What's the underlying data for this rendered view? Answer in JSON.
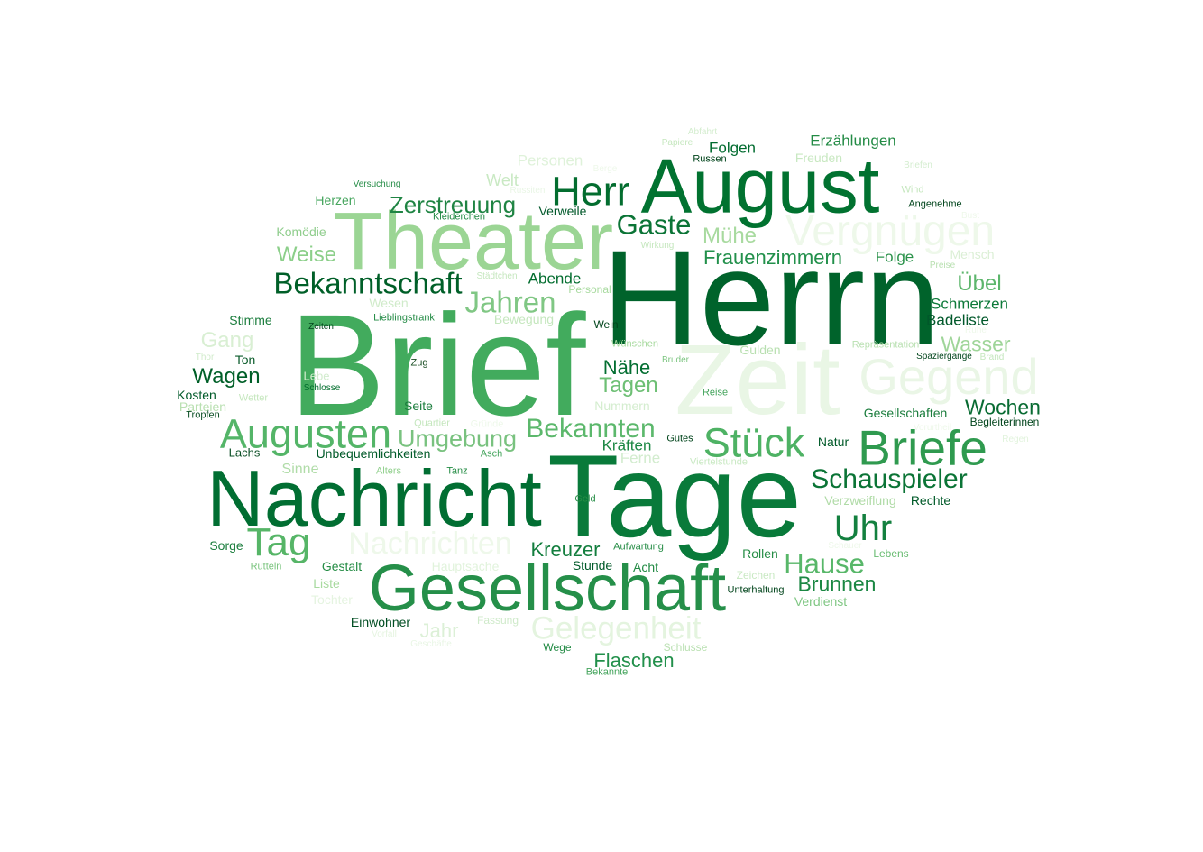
{
  "words": [
    {
      "text": "Herrn",
      "color": "#00632b"
    },
    {
      "text": "Brief",
      "color": "#42ab5d"
    },
    {
      "text": "Tage",
      "color": "#097a3a"
    },
    {
      "text": "Zeit",
      "color": "#e9f6e5"
    },
    {
      "text": "Nachricht",
      "color": "#016e32"
    },
    {
      "text": "Theater",
      "color": "#9bd594"
    },
    {
      "text": "August",
      "color": "#017230"
    },
    {
      "text": "Gesellschaft",
      "color": "#258f49"
    },
    {
      "text": "Gegend",
      "color": "#eaf6e6"
    },
    {
      "text": "Vergnügen",
      "color": "#eef8ea"
    },
    {
      "text": "Briefe",
      "color": "#2f9a4f"
    },
    {
      "text": "Augusten",
      "color": "#54b568"
    },
    {
      "text": "Herr",
      "color": "#036d2f"
    },
    {
      "text": "Nachrichten",
      "color": "#eef8ea"
    },
    {
      "text": "Gelegenheit",
      "color": "#e4f4df"
    },
    {
      "text": "Stück",
      "color": "#4eb264"
    },
    {
      "text": "Uhr",
      "color": "#13803f"
    },
    {
      "text": "Bekanntschaft",
      "color": "#005f28"
    },
    {
      "text": "Schauspieler",
      "color": "#0b7436"
    },
    {
      "text": "Tag",
      "color": "#56b567"
    },
    {
      "text": "Bekannten",
      "color": "#5cb86c"
    },
    {
      "text": "Jahren",
      "color": "#80c784"
    },
    {
      "text": "Gaste",
      "color": "#0b7436"
    },
    {
      "text": "Zerstreuung",
      "color": "#1f8443"
    },
    {
      "text": "Hause",
      "color": "#58b769"
    },
    {
      "text": "Umgebung",
      "color": "#79c27f"
    },
    {
      "text": "Wochen",
      "color": "#086b32"
    },
    {
      "text": "Brunnen",
      "color": "#1b8743"
    },
    {
      "text": "Frauenzimmern",
      "color": "#22904b"
    },
    {
      "text": "Wagen",
      "color": "#005f28"
    },
    {
      "text": "Weise",
      "color": "#8ccf8a"
    },
    {
      "text": "Wasser",
      "color": "#9fd599"
    },
    {
      "text": "Mühe",
      "color": "#a8da9f"
    },
    {
      "text": "Tagen",
      "color": "#6dbf74"
    },
    {
      "text": "Übel",
      "color": "#5db66c"
    },
    {
      "text": "Kreuzer",
      "color": "#137e3e"
    },
    {
      "text": "Flaschen",
      "color": "#22904b"
    },
    {
      "text": "Nähe",
      "color": "#036e31"
    },
    {
      "text": "Gang",
      "color": "#d9efd3"
    },
    {
      "text": "Jahr",
      "color": "#dcf0d7"
    },
    {
      "text": "Personen",
      "color": "#dff2da"
    },
    {
      "text": "Erzählungen",
      "color": "#238b45"
    },
    {
      "text": "Folgen",
      "color": "#016b2f"
    },
    {
      "text": "Abende",
      "color": "#036d2f"
    },
    {
      "text": "Folge",
      "color": "#2a924a"
    },
    {
      "text": "Schmerzen",
      "color": "#0e7a3a"
    },
    {
      "text": "Badeliste",
      "color": "#00582a"
    },
    {
      "text": "Kräften",
      "color": "#1b8743"
    },
    {
      "text": "Verweile",
      "color": "#00582a"
    },
    {
      "text": "Mensch",
      "color": "#dbefd5"
    },
    {
      "text": "Wesen",
      "color": "#d0ebca"
    },
    {
      "text": "Ferne",
      "color": "#d2ecce"
    },
    {
      "text": "Sinne",
      "color": "#b0dca8"
    },
    {
      "text": "Stimme",
      "color": "#1b7d3d"
    },
    {
      "text": "Herzen",
      "color": "#45a55d"
    },
    {
      "text": "Komödie",
      "color": "#8fcd8c"
    },
    {
      "text": "Welt",
      "color": "#c9e9c3"
    },
    {
      "text": "Freuden",
      "color": "#c8e8c1"
    },
    {
      "text": "Bewegung",
      "color": "#c5e7be"
    },
    {
      "text": "Nummern",
      "color": "#d4edcf"
    },
    {
      "text": "Gulden",
      "color": "#b9e0b1"
    },
    {
      "text": "Verzweiflung",
      "color": "#b0dba7"
    },
    {
      "text": "Seite",
      "color": "#1b7d3d"
    },
    {
      "text": "Gesellschaften",
      "color": "#1b7d3d"
    },
    {
      "text": "Natur",
      "color": "#005a29"
    },
    {
      "text": "Rechte",
      "color": "#005a29"
    },
    {
      "text": "Sorge",
      "color": "#1b7d3d"
    },
    {
      "text": "Gestalt",
      "color": "#268d46"
    },
    {
      "text": "Stunde",
      "color": "#005a29"
    },
    {
      "text": "Acht",
      "color": "#238b45"
    },
    {
      "text": "Rollen",
      "color": "#268d46"
    },
    {
      "text": "Liste",
      "color": "#a8da9f"
    },
    {
      "text": "Tochter",
      "color": "#e5f4e0"
    },
    {
      "text": "Einwohner",
      "color": "#004d22"
    },
    {
      "text": "Hauptsache",
      "color": "#e1f3dc"
    },
    {
      "text": "Lebens",
      "color": "#69bc72"
    },
    {
      "text": "Verdienst",
      "color": "#80c784"
    },
    {
      "text": "Unbequemlichkeiten",
      "color": "#005a29"
    },
    {
      "text": "Ton",
      "color": "#0b5c2b"
    },
    {
      "text": "Kosten",
      "color": "#005a29"
    },
    {
      "text": "Parteien",
      "color": "#b9e0b1"
    },
    {
      "text": "Lachs",
      "color": "#0b4f25"
    },
    {
      "text": "Tropfen",
      "color": "#0b4f25"
    },
    {
      "text": "Wege",
      "color": "#238b45"
    },
    {
      "text": "Bekannte",
      "color": "#45a55d"
    },
    {
      "text": "Schlusse",
      "color": "#b9e0b1"
    },
    {
      "text": "Fassung",
      "color": "#cfeaca"
    },
    {
      "text": "Vorfall",
      "color": "#e5f4e0"
    },
    {
      "text": "Geschäfte",
      "color": "#e9f6e5"
    },
    {
      "text": "Zeichen",
      "color": "#c9e9c3"
    },
    {
      "text": "Unterhaltung",
      "color": "#00441b"
    },
    {
      "text": "Schauer",
      "color": "#eef8ea"
    },
    {
      "text": "Rütteln",
      "color": "#7bc47f"
    },
    {
      "text": "Aufwartung",
      "color": "#268d46"
    },
    {
      "text": "Geld",
      "color": "#268d46"
    },
    {
      "text": "Viertelstunde",
      "color": "#c9e9c3"
    },
    {
      "text": "Wetter",
      "color": "#c5e7be"
    },
    {
      "text": "Alters",
      "color": "#91d08d"
    },
    {
      "text": "Tanz",
      "color": "#268d46"
    },
    {
      "text": "Asch",
      "color": "#45a55d"
    },
    {
      "text": "Quartier",
      "color": "#c5e7be"
    },
    {
      "text": "Gründe",
      "color": "#eef8ea"
    },
    {
      "text": "Lebe",
      "color": "#d2ecce"
    },
    {
      "text": "Schlosse",
      "color": "#006d2c"
    },
    {
      "text": "Zug",
      "color": "#1b4f25"
    },
    {
      "text": "Gutes",
      "color": "#00441b"
    },
    {
      "text": "Reise",
      "color": "#45a55d"
    },
    {
      "text": "Bruder",
      "color": "#7bc47f"
    },
    {
      "text": "Wünschen",
      "color": "#a8da9f"
    },
    {
      "text": "Wein",
      "color": "#00441b"
    },
    {
      "text": "Zeiten",
      "color": "#00441b"
    },
    {
      "text": "Lieblingstrank",
      "color": "#238b45"
    },
    {
      "text": "Thor",
      "color": "#d0ebca"
    },
    {
      "text": "Städtchen",
      "color": "#c5e7be"
    },
    {
      "text": "Personal",
      "color": "#a8da9f"
    },
    {
      "text": "Wirkung",
      "color": "#c5e7be"
    },
    {
      "text": "Kleiderchen",
      "color": "#238b45"
    },
    {
      "text": "Russiten",
      "color": "#e9f6e5"
    },
    {
      "text": "Versuchung",
      "color": "#238b45"
    },
    {
      "text": "Berge",
      "color": "#eef8ea"
    },
    {
      "text": "Papiere",
      "color": "#c5e7be"
    },
    {
      "text": "Abfahrt",
      "color": "#d4edcf"
    },
    {
      "text": "Russen",
      "color": "#00441b"
    },
    {
      "text": "Briefen",
      "color": "#d4edcf"
    },
    {
      "text": "Wind",
      "color": "#c5e7be"
    },
    {
      "text": "Angenehme",
      "color": "#00441b"
    },
    {
      "text": "Bust",
      "color": "#eef8ea"
    },
    {
      "text": "Preise",
      "color": "#b9e0b1"
    },
    {
      "text": "Repräsentation",
      "color": "#b9e0b1"
    },
    {
      "text": "Spaziergänge",
      "color": "#00441b"
    },
    {
      "text": "Brand",
      "color": "#c5e7be"
    },
    {
      "text": "Begleiterinnen",
      "color": "#00441b"
    },
    {
      "text": "Regen",
      "color": "#e1f3dc"
    },
    {
      "text": "Ruhe",
      "color": "#eef8ea"
    },
    {
      "text": "Vorurtheil",
      "color": "#eef8ea"
    }
  ]
}
